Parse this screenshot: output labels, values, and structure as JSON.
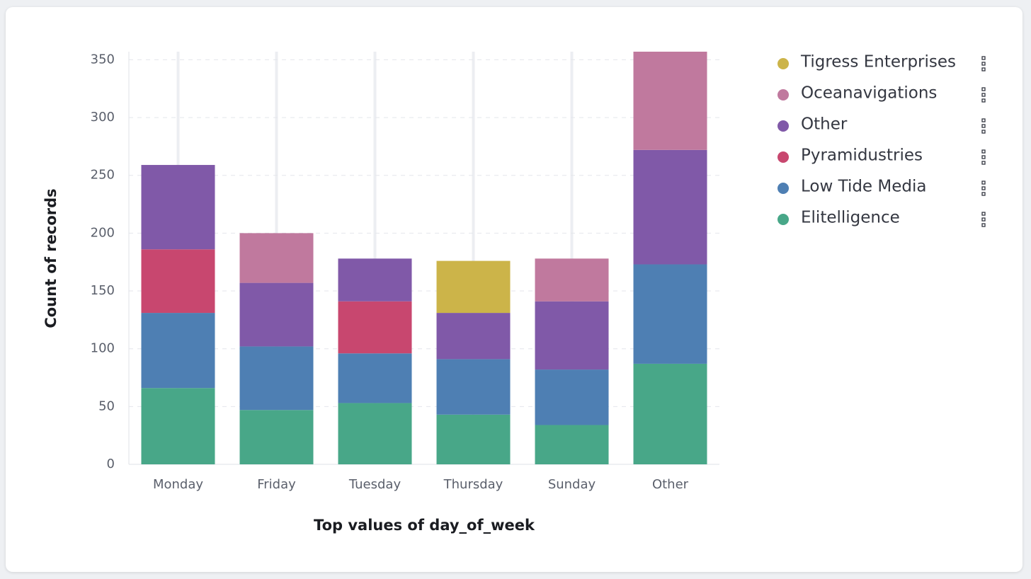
{
  "chart_data": {
    "type": "bar",
    "stacked": true,
    "x_label": "Top values of day_of_week",
    "y_label": "Count of records",
    "categories": [
      "Monday",
      "Friday",
      "Tuesday",
      "Thursday",
      "Sunday",
      "Other"
    ],
    "series": [
      {
        "name": "Tigress Enterprises",
        "color": "#ccb449",
        "values": [
          null,
          null,
          null,
          45,
          null,
          null
        ]
      },
      {
        "name": "Oceanavigations",
        "color": "#c0799e",
        "values": [
          null,
          43,
          null,
          null,
          37,
          85
        ]
      },
      {
        "name": "Other",
        "color": "#8059a8",
        "values": [
          73,
          55,
          37,
          40,
          59,
          99
        ]
      },
      {
        "name": "Pyramidustries",
        "color": "#c8476f",
        "values": [
          55,
          null,
          45,
          null,
          null,
          null
        ]
      },
      {
        "name": "Low Tide Media",
        "color": "#4e7fb3",
        "values": [
          65,
          55,
          43,
          48,
          48,
          86
        ]
      },
      {
        "name": "Elitelligence",
        "color": "#48a788",
        "values": [
          66,
          47,
          53,
          43,
          34,
          87
        ]
      }
    ],
    "ylim": [
      0,
      357
    ],
    "yticks": [
      0,
      50,
      100,
      150,
      200,
      250,
      300,
      350
    ],
    "grid": true,
    "legend": "right"
  }
}
